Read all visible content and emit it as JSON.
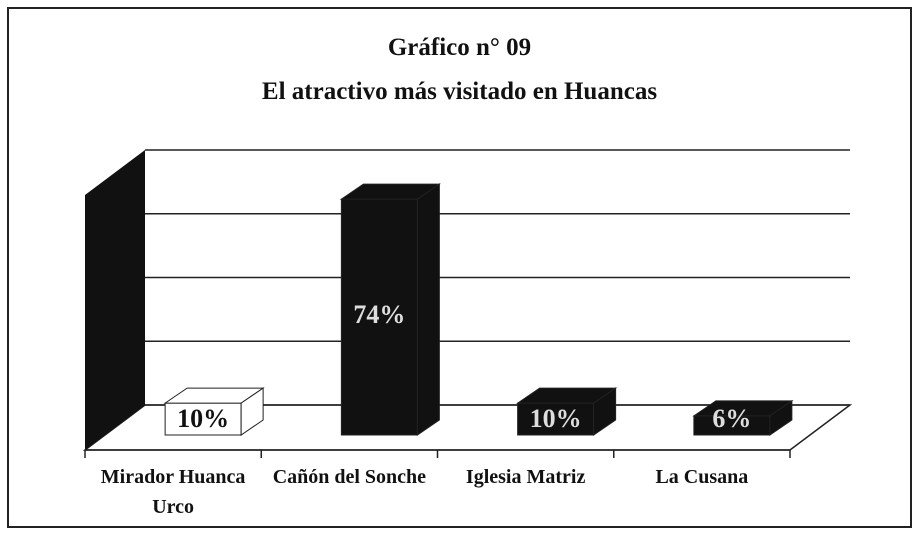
{
  "chart_data": {
    "type": "bar3d",
    "title": "Gráfico n° 09",
    "subtitle": "El atractivo más visitado en Huancas",
    "categories": [
      "Mirador Huanca Urco",
      "Cañón del Sonche",
      "Iglesia Matriz",
      "La Cusana"
    ],
    "values": [
      10,
      74,
      10,
      6
    ],
    "value_labels": [
      "10%",
      "74%",
      "10%",
      "6%"
    ],
    "colors": [
      "#ffffff",
      "#111111",
      "#111111",
      "#111111"
    ],
    "ylim": [
      0,
      100
    ],
    "yticks": [
      0,
      25,
      50,
      75,
      100
    ],
    "grid": true
  }
}
